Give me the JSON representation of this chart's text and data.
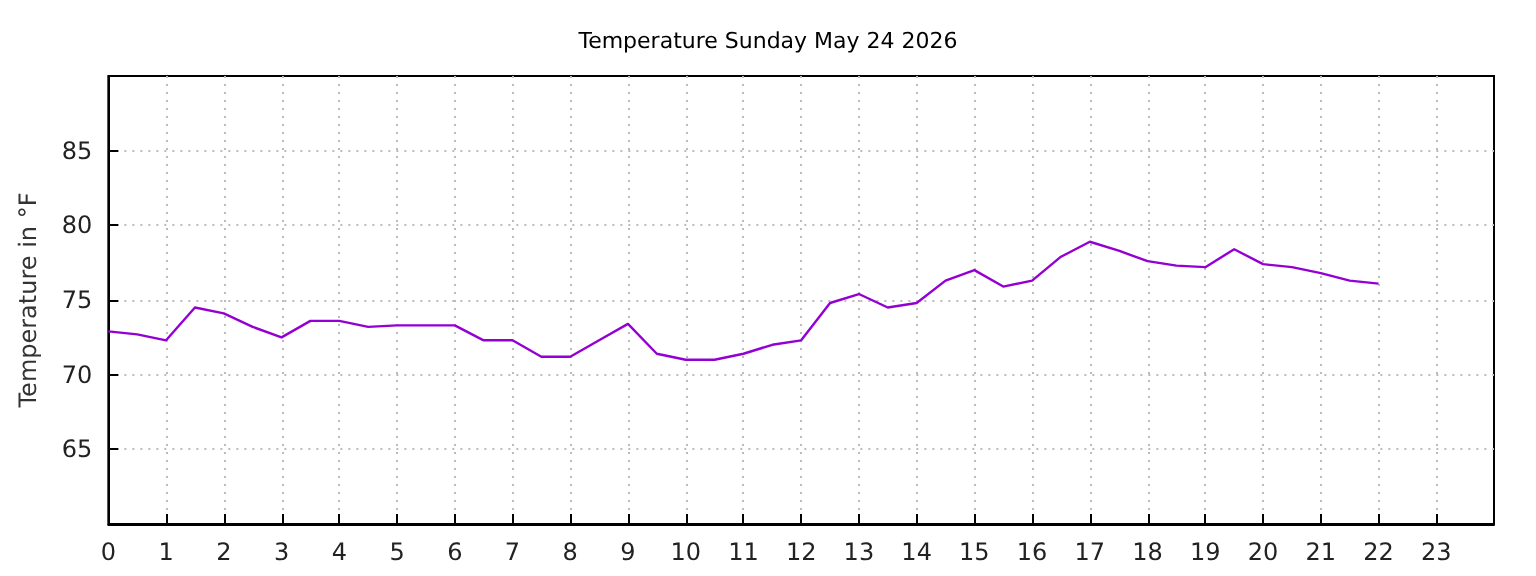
{
  "chart_data": {
    "type": "line",
    "title": "Temperature Sunday May 24 2026",
    "ylabel": "Temperature in °F",
    "x": [
      0,
      0.5,
      1,
      1.5,
      2,
      2.5,
      3,
      3.5,
      4,
      4.5,
      5,
      5.5,
      6,
      6.5,
      7,
      7.5,
      8,
      8.5,
      9,
      9.5,
      10,
      10.5,
      11,
      11.5,
      12,
      12.5,
      13,
      13.5,
      14,
      14.5,
      15,
      15.5,
      16,
      16.5,
      17,
      17.5,
      18,
      18.5,
      19,
      19.5,
      20,
      20.5,
      21,
      21.5,
      22
    ],
    "series": [
      {
        "color": "#9400d3",
        "values": [
          72.9,
          72.7,
          72.3,
          74.5,
          74.1,
          73.2,
          72.5,
          73.6,
          73.6,
          73.2,
          73.3,
          73.3,
          73.3,
          72.3,
          72.3,
          71.2,
          71.2,
          72.3,
          73.4,
          71.4,
          71.0,
          71.0,
          71.4,
          72.0,
          72.3,
          74.8,
          75.4,
          74.5,
          74.8,
          76.3,
          77.0,
          75.9,
          76.3,
          77.9,
          78.9,
          78.3,
          77.6,
          77.3,
          77.2,
          78.4,
          77.4,
          77.2,
          76.8,
          76.3,
          76.1
        ]
      }
    ],
    "xlim": [
      0,
      24
    ],
    "xticks": [
      0,
      1,
      2,
      3,
      4,
      5,
      6,
      7,
      8,
      9,
      10,
      11,
      12,
      13,
      14,
      15,
      16,
      17,
      18,
      19,
      20,
      21,
      22,
      23
    ],
    "ylim": [
      60,
      90
    ],
    "yticks": [
      65,
      70,
      75,
      80,
      85
    ],
    "grid": true,
    "marker": "none",
    "line_style": "solid"
  }
}
